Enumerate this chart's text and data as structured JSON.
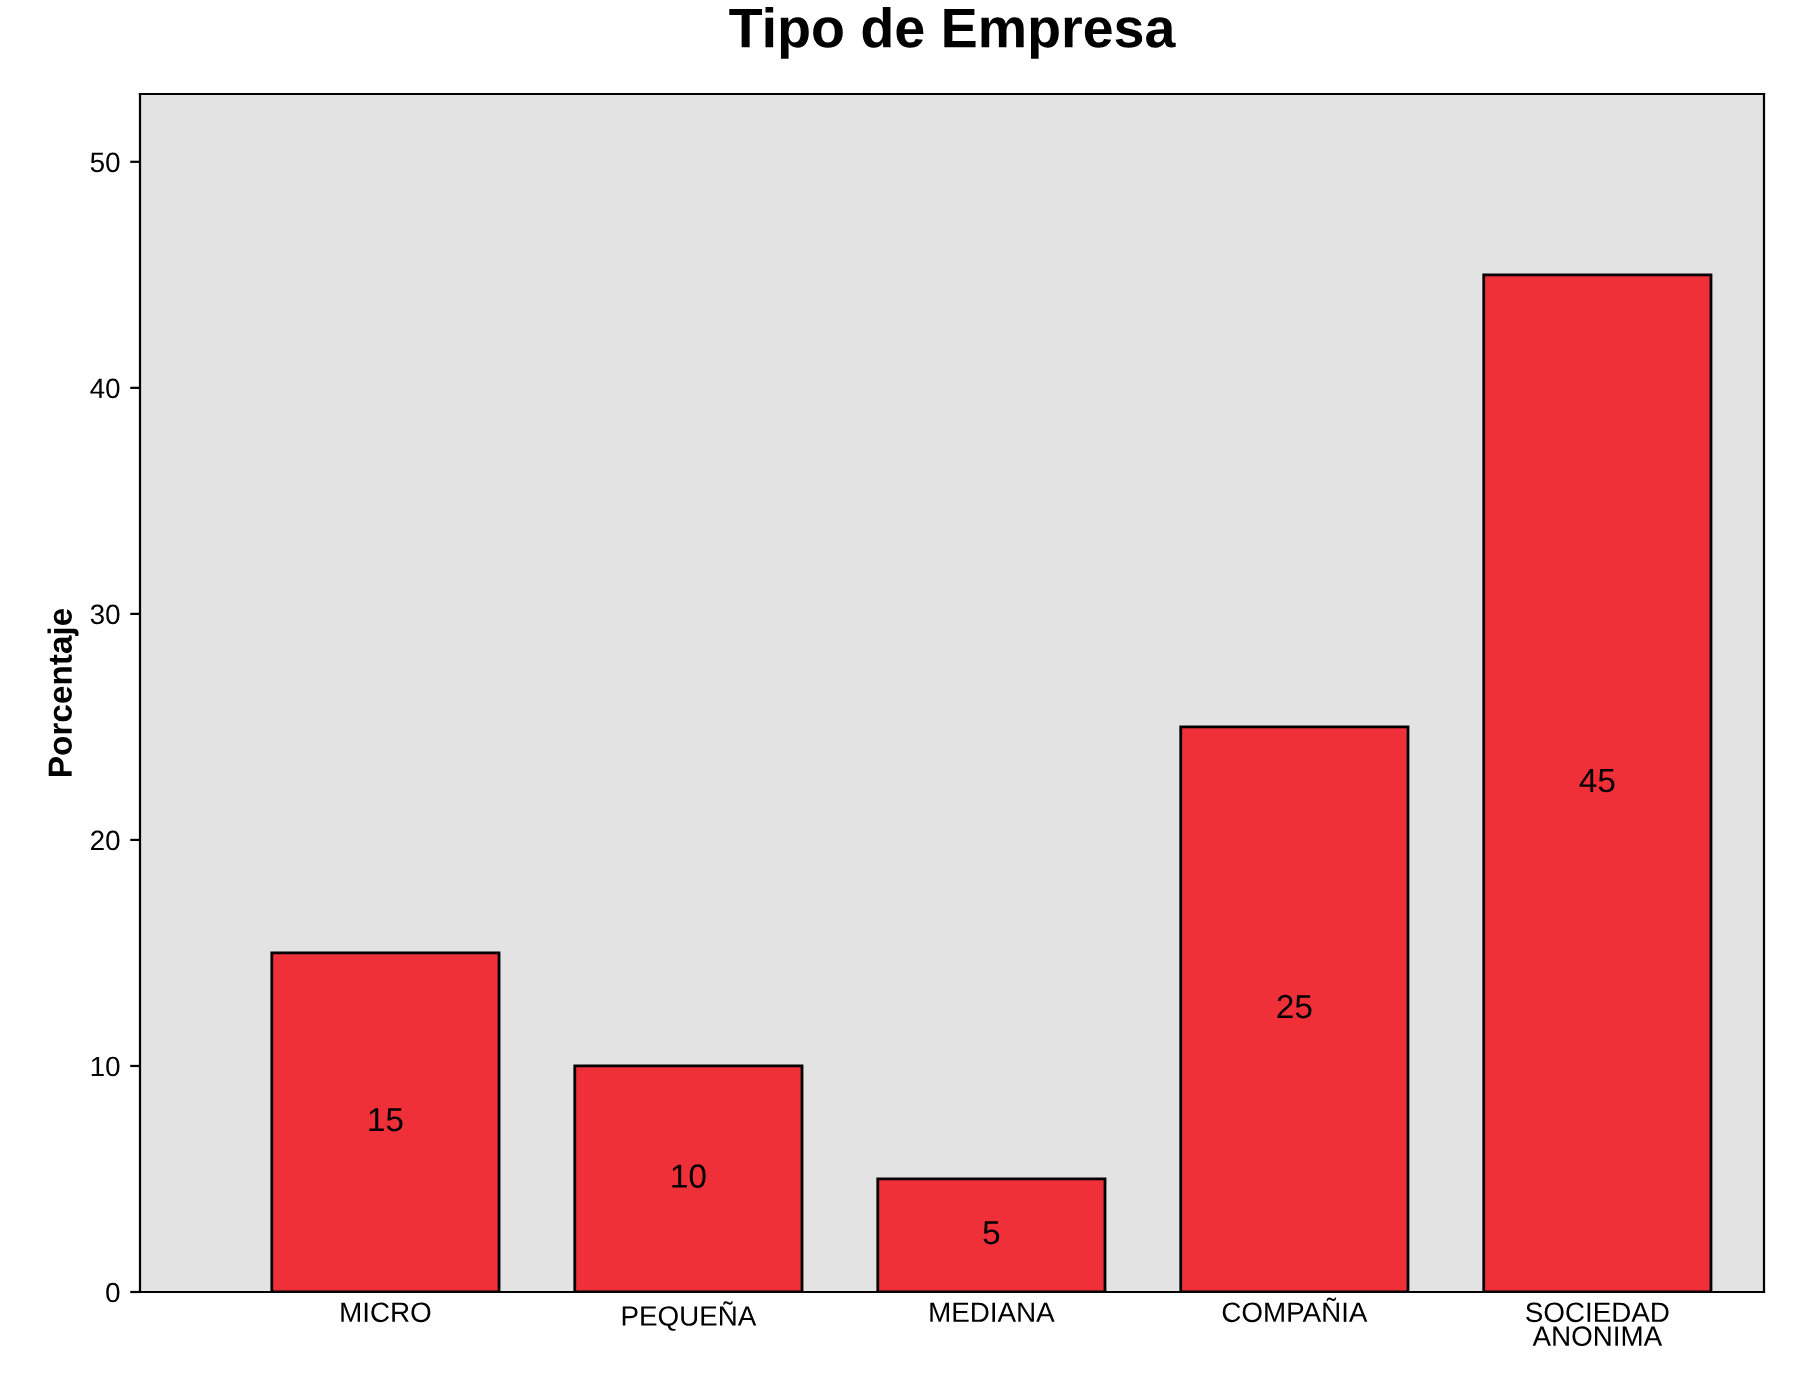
{
  "chart_data": {
    "type": "bar",
    "title": "Tipo de Empresa",
    "ylabel": "Porcentaje",
    "categories": [
      "MICRO",
      "PEQUEÑA",
      "MEDIANA",
      "COMPAÑIA",
      "SOCIEDAD\nANONIMA"
    ],
    "values": [
      15,
      10,
      5,
      25,
      45
    ],
    "color": "#ef3038",
    "ylim": [
      0,
      53
    ],
    "yticks": [
      0,
      10,
      20,
      30,
      40,
      50
    ],
    "grid": false,
    "data_labels": true
  }
}
